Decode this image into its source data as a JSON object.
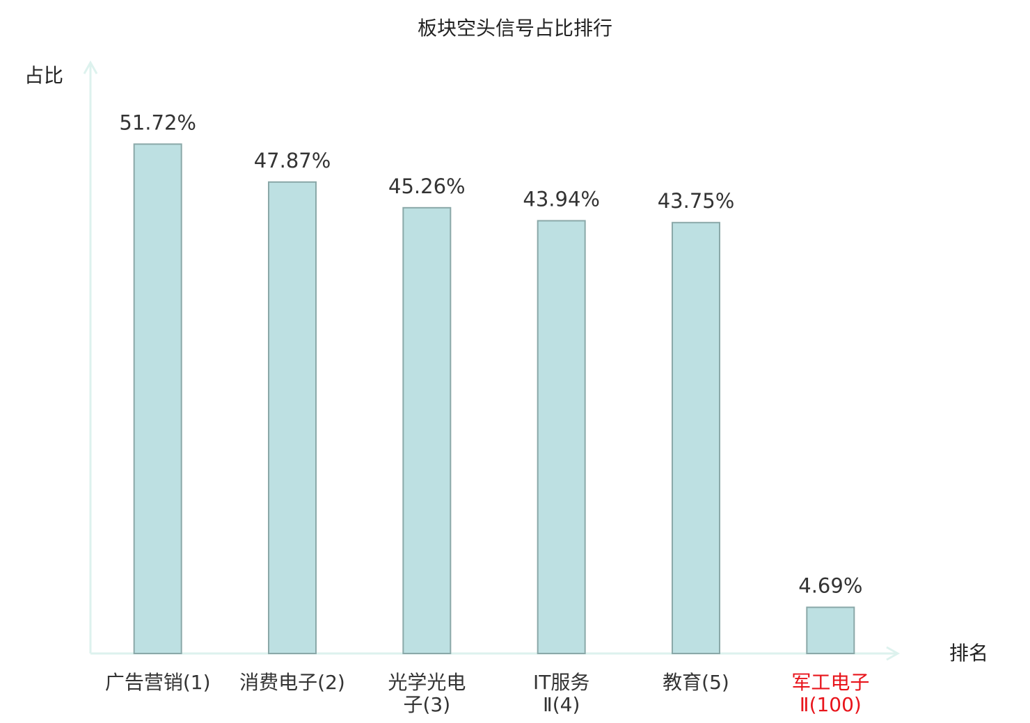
{
  "chart_data": {
    "type": "bar",
    "title": "板块空头信号占比排行",
    "y_label": "占比",
    "x_label": "排名",
    "categories": [
      [
        "广告营销(1)"
      ],
      [
        "消费电子(2)"
      ],
      [
        "光学光电",
        "子(3)"
      ],
      [
        "IT服务",
        "Ⅱ(4)"
      ],
      [
        "教育(5)"
      ],
      [
        "军工电子",
        "Ⅱ(100)"
      ]
    ],
    "label_colors": [
      "#333333",
      "#333333",
      "#333333",
      "#333333",
      "#333333",
      "#e8141b"
    ],
    "values": [
      51.72,
      47.87,
      45.26,
      43.94,
      43.75,
      4.69
    ],
    "value_labels": [
      "51.72%",
      "47.87%",
      "45.26%",
      "43.94%",
      "43.75%",
      "4.69%"
    ],
    "color": "#bde0e2",
    "edge_color": "#8aa8a8",
    "axis_color": "#ddf2ee",
    "ylim": [
      0,
      60
    ]
  }
}
